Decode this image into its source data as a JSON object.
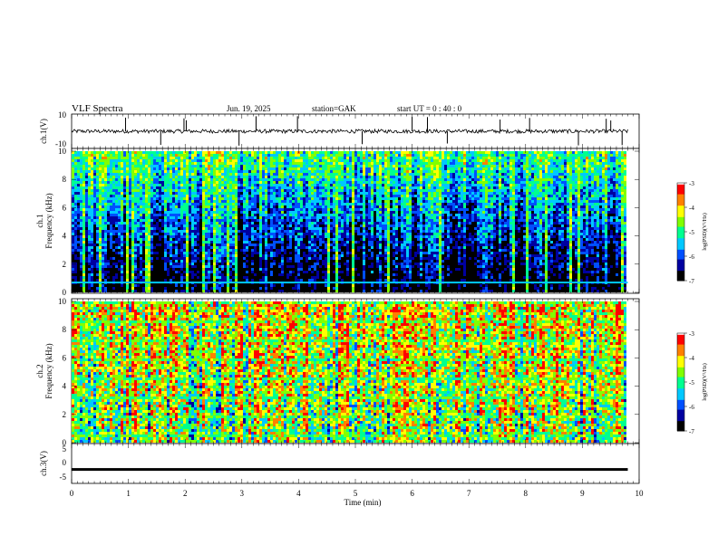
{
  "header": {
    "title": "VLF  Spectra",
    "date": "Jun. 19, 2025",
    "station": "station=GAK",
    "start": "start  UT =   0  : 40 : 0"
  },
  "chart_data": [
    {
      "type": "line",
      "ylabel": "ch.1(V)",
      "ylim": [
        -10,
        10
      ],
      "yticks": [
        "10",
        "-10"
      ],
      "baseline": 0,
      "x_range": [
        0,
        9.8
      ],
      "spikes_min": [
        0.95,
        1.57,
        1.98,
        2.02,
        2.95,
        3.25,
        3.98,
        5.12,
        6.0,
        6.27,
        6.62,
        7.55,
        8.07,
        8.93,
        9.42,
        9.5,
        9.7
      ],
      "series_color": "#000000"
    },
    {
      "type": "heatmap",
      "ylabel": "ch.1\nFrequency (kHz)",
      "ylim": [
        0,
        10
      ],
      "yticks": [
        "0",
        "2",
        "4",
        "6",
        "8",
        "10"
      ],
      "x_range": [
        0,
        9.8
      ],
      "colorbar": {
        "label": "log(PSD)(V²/Hz)",
        "range": [
          -7,
          -3
        ],
        "ticks": [
          "-3",
          "-4",
          "-5",
          "-6",
          "-7"
        ]
      },
      "intensity": "low",
      "note_band_khz": 0.7
    },
    {
      "type": "heatmap",
      "ylabel": "ch.2\nFrequency (kHz)",
      "ylim": [
        0,
        10
      ],
      "yticks": [
        "0",
        "2",
        "4",
        "6",
        "8",
        "10"
      ],
      "x_range": [
        0,
        9.8
      ],
      "colorbar": {
        "label": "log(PSD)(V²/Hz)",
        "range": [
          -7,
          -3
        ],
        "ticks": [
          "-3",
          "-4",
          "-5",
          "-6",
          "-7"
        ]
      },
      "intensity": "high"
    },
    {
      "type": "line",
      "ylabel": "ch.3(V)",
      "ylim": [
        -5,
        5
      ],
      "yticks": [
        "5",
        "0",
        "-5"
      ],
      "level": -1.5,
      "x_range": [
        0,
        9.8
      ],
      "series_color": "#000000"
    }
  ],
  "xaxis": {
    "label": "Time  (min)",
    "range": [
      0,
      10
    ],
    "ticks": [
      "0",
      "1",
      "2",
      "3",
      "4",
      "5",
      "6",
      "7",
      "8",
      "9",
      "10"
    ]
  },
  "colors": {
    "colormap": [
      "#000000",
      "#0000a0",
      "#0050ff",
      "#00c8ff",
      "#00ff90",
      "#80ff00",
      "#ffff00",
      "#ff8000",
      "#ff0000",
      "#ffffff"
    ]
  }
}
